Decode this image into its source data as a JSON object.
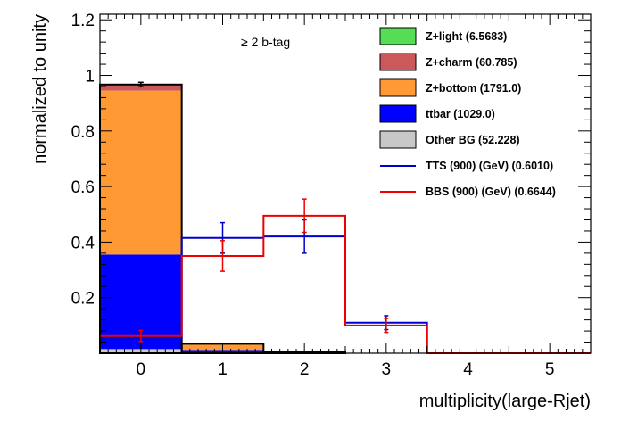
{
  "chart_data": {
    "type": "bar",
    "stacked": true,
    "annotation": "≥ 2 b-tag",
    "xlabel": "multiplicity(large-Rjet)",
    "ylabel": "normalized to unity",
    "xlim": [
      -0.5,
      5.5
    ],
    "ylim": [
      0,
      1.22
    ],
    "categories": [
      "0",
      "1",
      "2",
      "3",
      "4",
      "5"
    ],
    "x_ticks": [
      0,
      1,
      2,
      3,
      4,
      5
    ],
    "y_ticks": [
      0.2,
      0.4,
      0.6,
      0.8,
      1,
      1.2
    ],
    "y_tick_labels": [
      "0.2",
      "0.4",
      "0.6",
      "0.8",
      "1",
      "1.2"
    ],
    "background_stack": [
      {
        "name": "Other BG (52.228)",
        "color": "#c8c8c8",
        "values": [
          0.015,
          0.001,
          0,
          0,
          0,
          0
        ]
      },
      {
        "name": "ttbar (1029.0)",
        "color": "#0000ff",
        "values": [
          0.34,
          0.011,
          0.003,
          0,
          0,
          0
        ]
      },
      {
        "name": "Z+bottom (1791.0)",
        "color": "#ff9933",
        "values": [
          0.59,
          0.021,
          0.002,
          0,
          0,
          0
        ]
      },
      {
        "name": "Z+charm (60.785)",
        "color": "#cc5959",
        "values": [
          0.02,
          0.001,
          0,
          0,
          0,
          0
        ]
      },
      {
        "name": "Z+light (6.5683)",
        "color": "#55dd55",
        "values": [
          0.002,
          0,
          0,
          0,
          0,
          0
        ]
      }
    ],
    "stack_error": [
      0.008,
      0,
      0,
      0,
      0,
      0
    ],
    "signals": [
      {
        "name": "TTS (900) (GeV) (0.6010)",
        "color": "#0000cc",
        "values": [
          0.055,
          0.415,
          0.42,
          0.11,
          0,
          0
        ],
        "errors": [
          0.02,
          0.055,
          0.06,
          0.025,
          0,
          0
        ]
      },
      {
        "name": "BBS (900) (GeV) (0.6644)",
        "color": "#ee0000",
        "values": [
          0.062,
          0.35,
          0.495,
          0.1,
          0,
          0
        ],
        "errors": [
          0.02,
          0.055,
          0.06,
          0.025,
          0,
          0
        ]
      }
    ],
    "legend_order": [
      {
        "name": "Z+light (6.5683)",
        "kind": "box",
        "color": "#55dd55"
      },
      {
        "name": "Z+charm (60.785)",
        "kind": "box",
        "color": "#cc5959"
      },
      {
        "name": "Z+bottom (1791.0)",
        "kind": "box",
        "color": "#ff9933"
      },
      {
        "name": "ttbar (1029.0)",
        "kind": "box",
        "color": "#0000ff"
      },
      {
        "name": "Other BG (52.228)",
        "kind": "box",
        "color": "#c8c8c8"
      },
      {
        "name": "TTS (900) (GeV) (0.6010)",
        "kind": "line",
        "color": "#0000cc"
      },
      {
        "name": "BBS (900) (GeV) (0.6644)",
        "kind": "line",
        "color": "#ee0000"
      }
    ],
    "legend_position": "top-right",
    "grid": false
  }
}
